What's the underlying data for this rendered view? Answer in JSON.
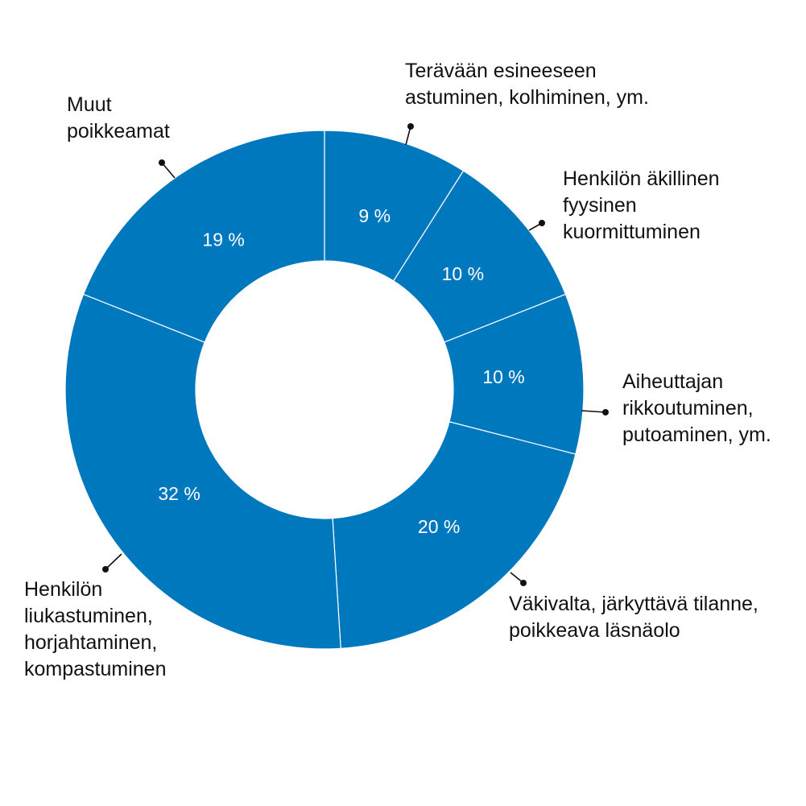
{
  "colors": {
    "slice": "#0078BE",
    "background": "#ffffff",
    "text": "#111111",
    "percent_text": "#ffffff"
  },
  "chart_data": {
    "type": "pie",
    "variant": "donut",
    "title": "",
    "unit": "%",
    "slices": [
      {
        "label_lines": [
          "Terävään esineeseen",
          "astuminen, kolhiminen, ym."
        ],
        "value": 9,
        "value_label": "9 %"
      },
      {
        "label_lines": [
          "Henkilön äkillinen",
          "fyysinen",
          "kuormittuminen"
        ],
        "value": 10,
        "value_label": "10 %"
      },
      {
        "label_lines": [
          "Aiheuttajan",
          "rikkoutuminen,",
          "putoaminen, ym."
        ],
        "value": 10,
        "value_label": "10 %"
      },
      {
        "label_lines": [
          "Väkivalta, järkyttävä tilanne,",
          "poikkeava läsnäolo"
        ],
        "value": 20,
        "value_label": "20 %"
      },
      {
        "label_lines": [
          "Henkilön",
          "liukastuminen,",
          "horjahtaminen,",
          "kompastuminen"
        ],
        "value": 32,
        "value_label": "32 %"
      },
      {
        "label_lines": [
          "Muut",
          "poikkeamat"
        ],
        "value": 19,
        "value_label": "19 %"
      }
    ]
  }
}
